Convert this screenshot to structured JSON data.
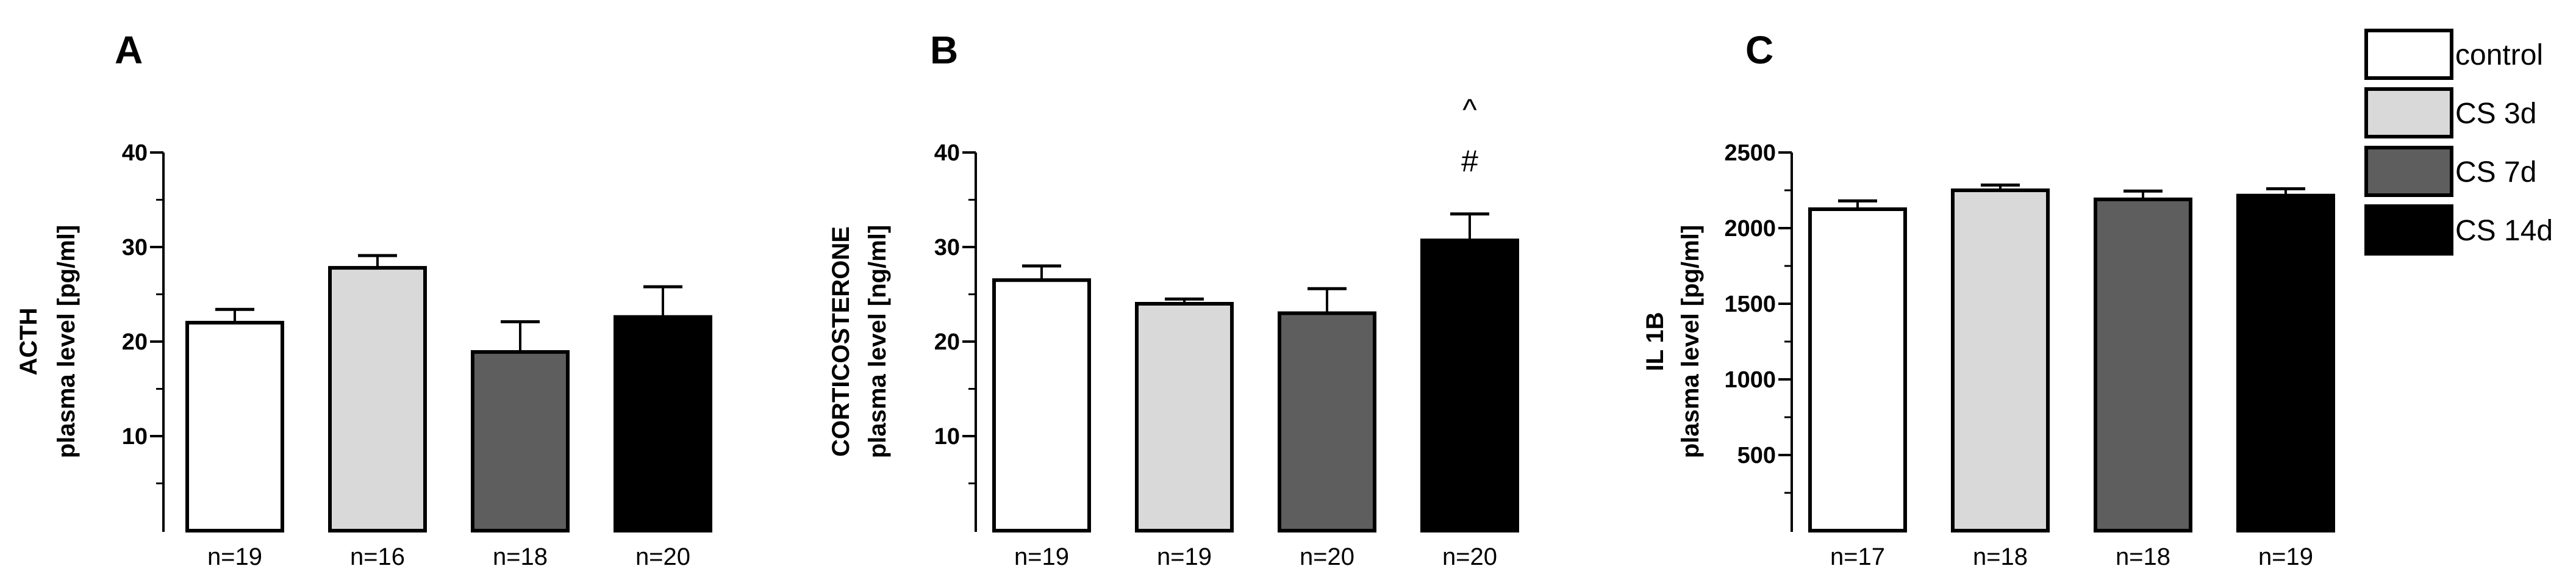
{
  "legend": {
    "placement": "right",
    "entries": [
      {
        "label": "control",
        "color": "#ffffff"
      },
      {
        "label": "CS 3d",
        "color": "#d9d9d9"
      },
      {
        "label": "CS 7d",
        "color": "#5e5e5e"
      },
      {
        "label": "CS 14d",
        "color": "#000000"
      }
    ]
  },
  "chart_data": [
    {
      "type": "bar",
      "panel": "A",
      "title": "",
      "ylabel_lines": [
        "ACTH",
        "plasma level [pg/ml]"
      ],
      "xlabel": "",
      "ylim": [
        0,
        40
      ],
      "yticks": [
        10,
        20,
        30,
        40
      ],
      "minor_step": 5,
      "categories": [
        "n=19",
        "n=16",
        "n=18",
        "n=20"
      ],
      "values": [
        22,
        27.8,
        18.9,
        22.6
      ],
      "errors": [
        1.4,
        1.3,
        3.2,
        3.2
      ],
      "annotations": []
    },
    {
      "type": "bar",
      "panel": "B",
      "title": "",
      "ylabel_lines": [
        "CORTICOSTERONE",
        "plasma level [ng/ml]"
      ],
      "xlabel": "",
      "ylim": [
        0,
        40
      ],
      "yticks": [
        10,
        20,
        30,
        40
      ],
      "minor_step": 5,
      "categories": [
        "n=19",
        "n=19",
        "n=20",
        "n=20"
      ],
      "values": [
        26.5,
        24,
        23,
        30.7
      ],
      "errors": [
        1.5,
        0.5,
        2.6,
        2.8
      ],
      "annotations": [
        {
          "category_index": 3,
          "lines": [
            "^",
            "#"
          ]
        }
      ]
    },
    {
      "type": "bar",
      "panel": "C",
      "title": "",
      "ylabel_lines": [
        "IL 1B",
        "plasma level [pg/ml]"
      ],
      "xlabel": "",
      "ylim": [
        0,
        2500
      ],
      "yticks": [
        500,
        1000,
        1500,
        2000,
        2500
      ],
      "minor_step": 250,
      "categories": [
        "n=17",
        "n=18",
        "n=18",
        "n=19"
      ],
      "values": [
        2125,
        2250,
        2190,
        2215
      ],
      "errors": [
        55,
        35,
        55,
        45
      ],
      "annotations": []
    }
  ]
}
